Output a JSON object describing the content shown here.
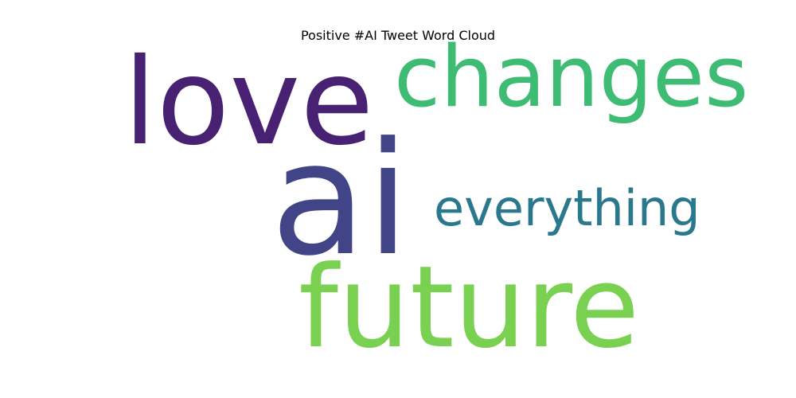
{
  "chart_data": {
    "type": "wordcloud",
    "title": "Positive #AI Tweet Word Cloud",
    "words": [
      {
        "text": "ai",
        "weight": 1.0,
        "color": "#414487"
      },
      {
        "text": "love",
        "weight": 0.6,
        "color": "#482173"
      },
      {
        "text": "future",
        "weight": 0.6,
        "color": "#7ad151"
      },
      {
        "text": "changes",
        "weight": 0.45,
        "color": "#3fbc73"
      },
      {
        "text": "everything",
        "weight": 0.3,
        "color": "#2a788e"
      }
    ]
  }
}
